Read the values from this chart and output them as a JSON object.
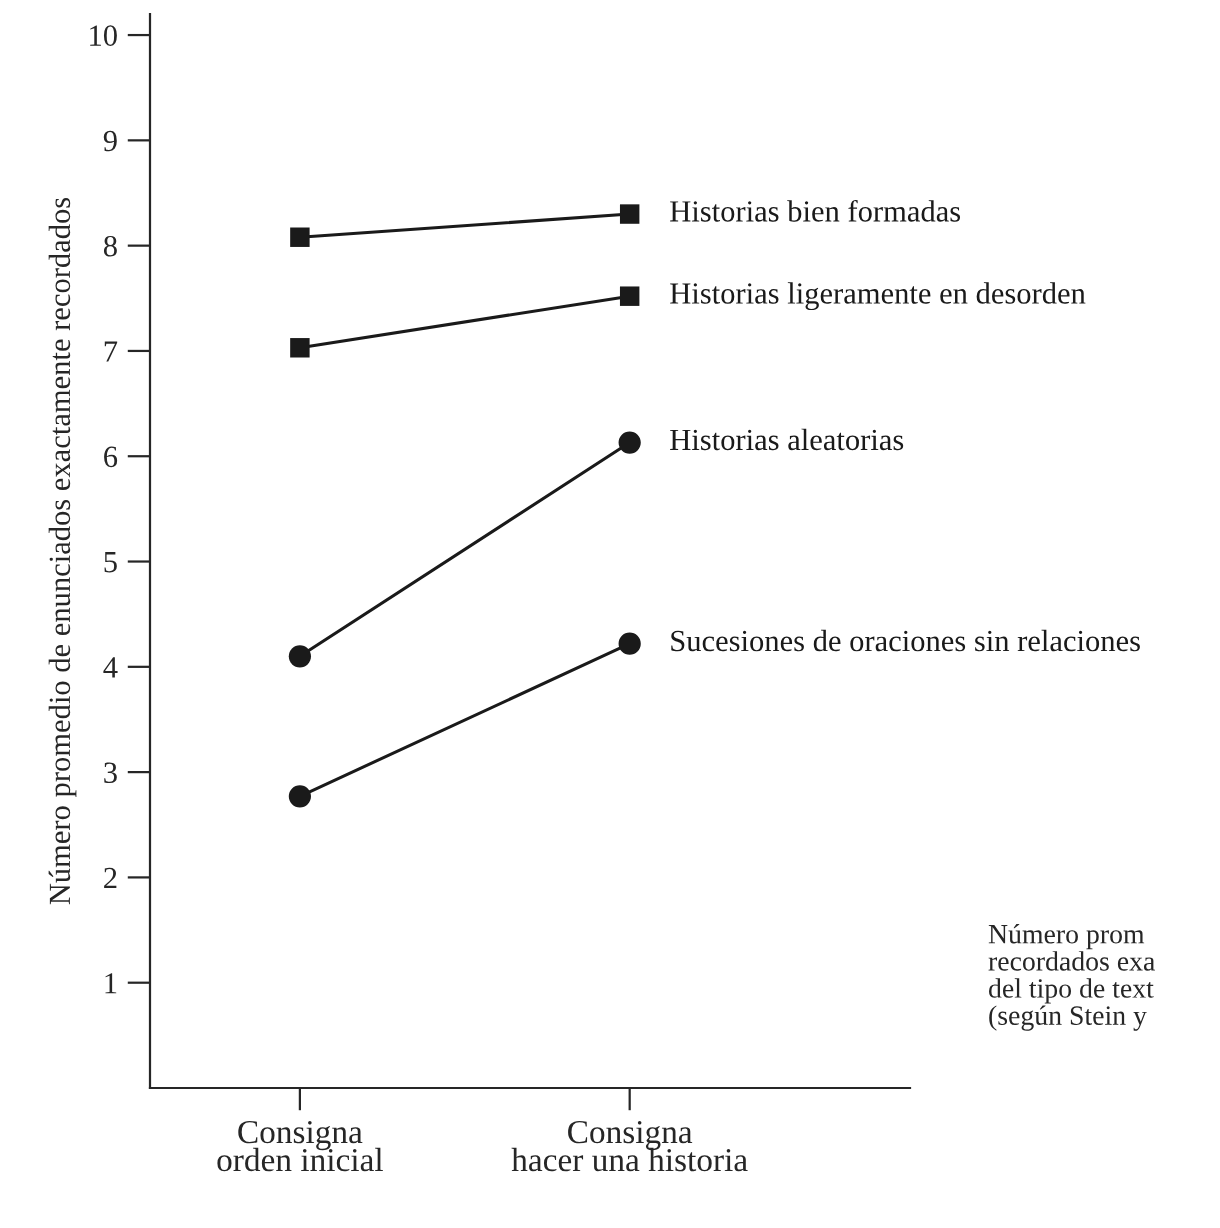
{
  "chart_data": {
    "type": "line",
    "ylabel": "Número promedio de enunciados exactamente recordados",
    "categories": [
      "Consigna\norden inicial",
      "Consigna\nhacer una historia"
    ],
    "ylim": [
      0,
      10.2
    ],
    "yticks": [
      1,
      2,
      3,
      4,
      5,
      6,
      7,
      8,
      9,
      10
    ],
    "grid": false,
    "line_style": "solid",
    "series": [
      {
        "name": "Historias bien formadas",
        "color": "#1a1a1a",
        "marker": "square",
        "values": [
          8.08,
          8.3
        ]
      },
      {
        "name": "Historias ligeramente en desorden",
        "color": "#1a1a1a",
        "marker": "square",
        "values": [
          7.03,
          7.52
        ]
      },
      {
        "name": "Historias aleatorias",
        "color": "#1a1a1a",
        "marker": "circle",
        "values": [
          4.1,
          6.13
        ]
      },
      {
        "name": "Sucesiones de oraciones sin relaciones",
        "color": "#1a1a1a",
        "marker": "circle",
        "values": [
          2.77,
          4.22
        ]
      }
    ],
    "annotations": [
      "Número prom\nrecordados exa\ndel tipo de text\n(según Stein y"
    ]
  }
}
